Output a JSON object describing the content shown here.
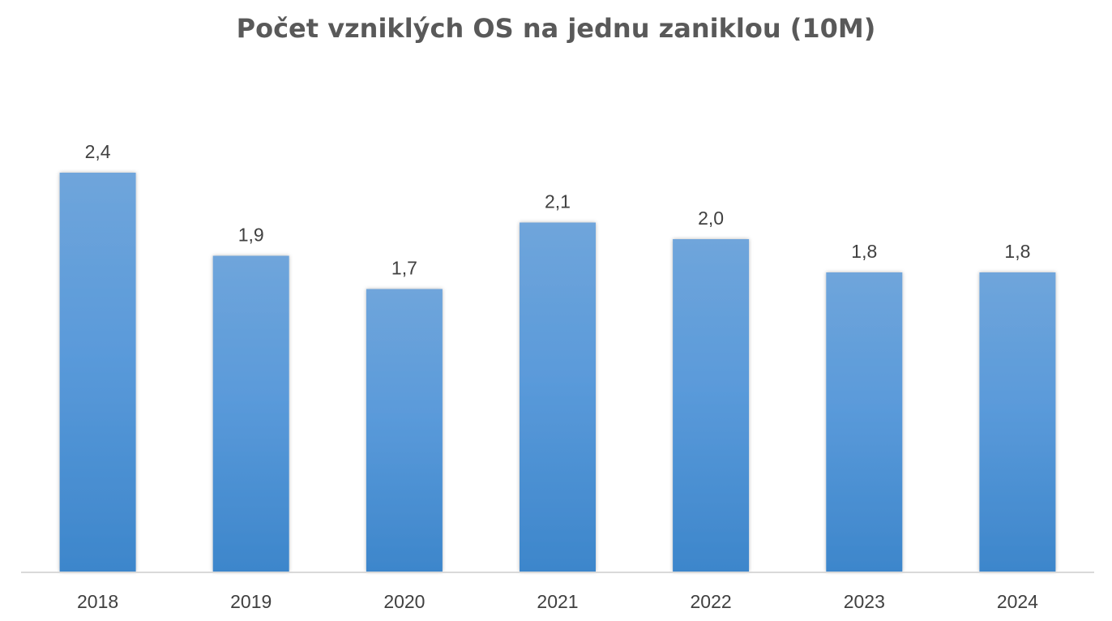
{
  "chart_data": {
    "type": "bar",
    "title": "Počet vzniklých OS na jednu zaniklou (10M)",
    "xlabel": "",
    "ylabel": "",
    "categories": [
      "2018",
      "2019",
      "2020",
      "2021",
      "2022",
      "2023",
      "2024"
    ],
    "values": [
      2.4,
      1.9,
      1.7,
      2.1,
      2.0,
      1.8,
      1.8
    ],
    "data_labels": [
      "2,4",
      "1,9",
      "1,7",
      "2,1",
      "2,0",
      "1,8",
      "1,8"
    ],
    "ylim": [
      0,
      3.0
    ],
    "grid": false,
    "legend": "none",
    "colors": {
      "bar_top": "#6fa5db",
      "bar_bottom": "#3d86cb",
      "axis": "#d9d9d9",
      "text": "#404040",
      "title": "#595959"
    }
  }
}
